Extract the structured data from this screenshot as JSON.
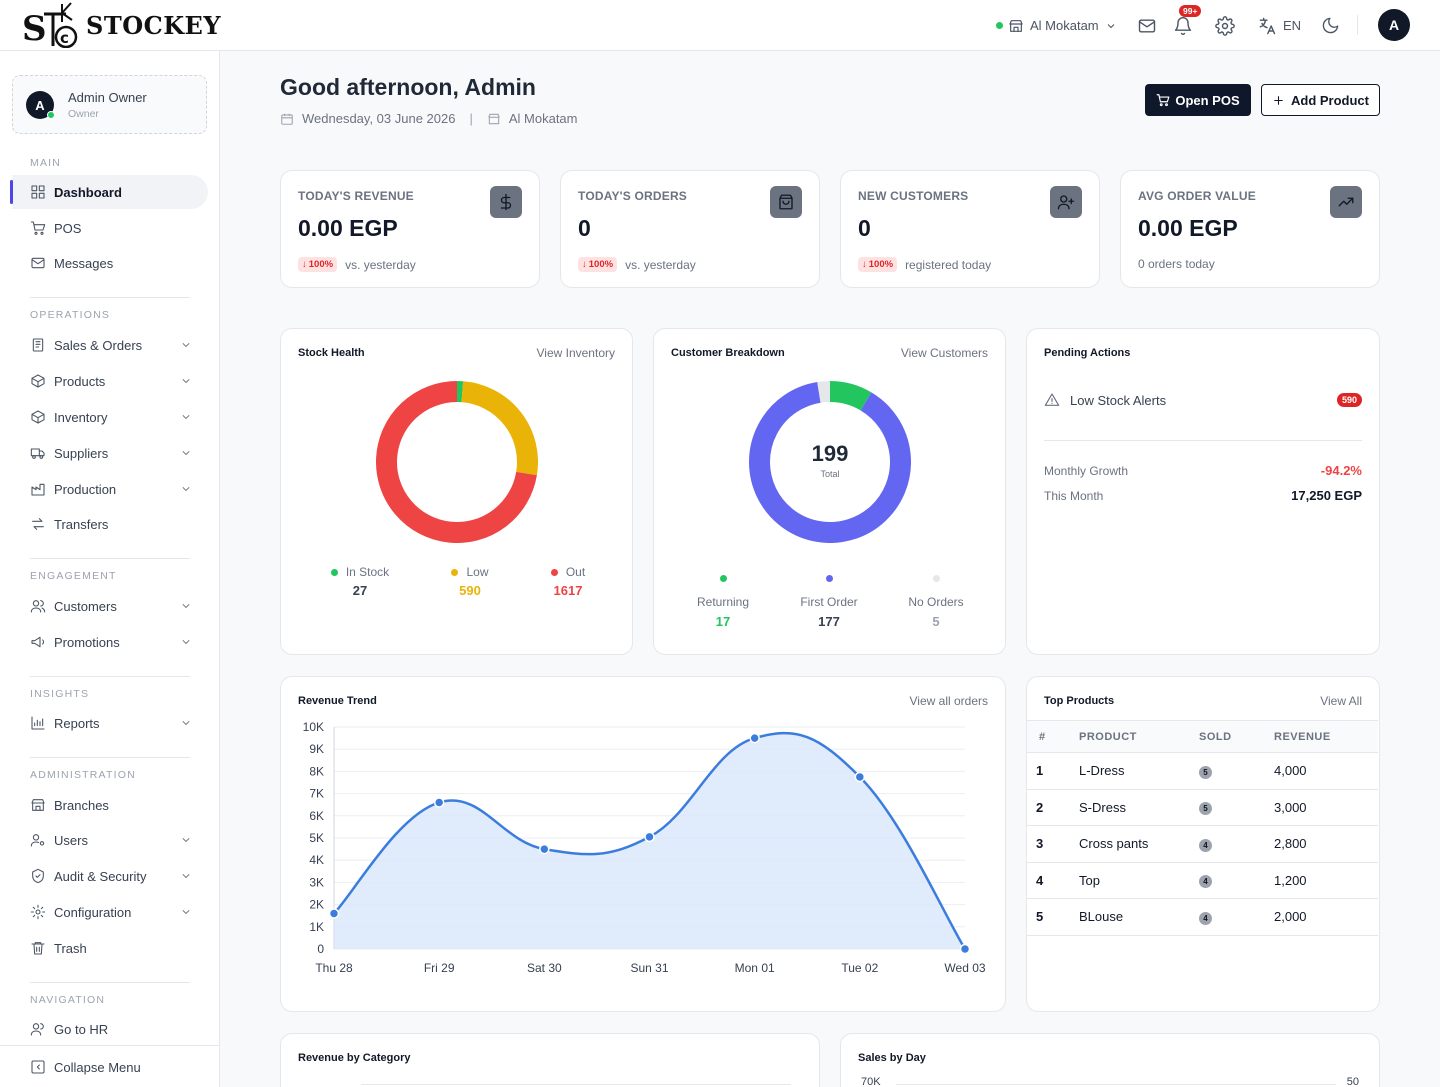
{
  "app": {
    "name": "STOCKEY"
  },
  "topbar": {
    "branch": "Al Mokatam",
    "notifications_badge": "99+",
    "language": "EN",
    "user_initial": "A"
  },
  "profile": {
    "initial": "A",
    "name": "Admin Owner",
    "role": "Owner"
  },
  "sidebar": {
    "sections": {
      "main": "MAIN",
      "operations": "OPERATIONS",
      "engagement": "ENGAGEMENT",
      "insights": "INSIGHTS",
      "administration": "ADMINISTRATION",
      "navigation": "NAVIGATION"
    },
    "items": {
      "dashboard": "Dashboard",
      "pos": "POS",
      "messages": "Messages",
      "sales_orders": "Sales & Orders",
      "products": "Products",
      "inventory": "Inventory",
      "suppliers": "Suppliers",
      "production": "Production",
      "transfers": "Transfers",
      "customers": "Customers",
      "promotions": "Promotions",
      "reports": "Reports",
      "branches": "Branches",
      "users": "Users",
      "audit": "Audit & Security",
      "configuration": "Configuration",
      "trash": "Trash",
      "go_to_hr": "Go to HR",
      "collapse": "Collapse Menu"
    }
  },
  "header": {
    "greeting": "Good afternoon, Admin",
    "date": "Wednesday, 03 June 2026",
    "separator": "|",
    "branch": "Al Mokatam",
    "open_pos": "Open POS",
    "add_product": "Add Product"
  },
  "stats": [
    {
      "label": "TODAY'S REVENUE",
      "value": "0.00 EGP",
      "badge": "100%",
      "sub": "vs. yesterday",
      "icon": "dollar-icon"
    },
    {
      "label": "TODAY'S ORDERS",
      "value": "0",
      "badge": "100%",
      "sub": "vs. yesterday",
      "icon": "shopping-bag-icon"
    },
    {
      "label": "NEW CUSTOMERS",
      "value": "0",
      "badge": "100%",
      "sub": "registered today",
      "icon": "user-plus-icon"
    },
    {
      "label": "AVG ORDER VALUE",
      "value": "0.00 EGP",
      "badge": "",
      "sub": "0 orders today",
      "icon": "trending-up-icon"
    }
  ],
  "stock_health": {
    "title": "Stock Health",
    "link": "View Inventory",
    "legend": [
      {
        "label": "In Stock",
        "value": "27",
        "color": "#22c55e"
      },
      {
        "label": "Low",
        "value": "590",
        "color": "#eab308"
      },
      {
        "label": "Out",
        "value": "1617",
        "color": "#ef4444"
      }
    ]
  },
  "customer_breakdown": {
    "title": "Customer Breakdown",
    "link": "View Customers",
    "total": "199",
    "total_label": "Total",
    "legend": [
      {
        "label": "Returning",
        "value": "17",
        "color": "#22c55e"
      },
      {
        "label": "First Order",
        "value": "177",
        "color": "#6366f1"
      },
      {
        "label": "No Orders",
        "value": "5",
        "color": "#e5e7eb"
      }
    ]
  },
  "pending": {
    "title": "Pending Actions",
    "low_stock_label": "Low Stock Alerts",
    "low_stock_count": "590",
    "growth_label": "Monthly Growth",
    "growth_value": "-94.2%",
    "month_label": "This Month",
    "month_value": "17,250 EGP"
  },
  "revenue_trend": {
    "title": "Revenue Trend",
    "link": "View all orders"
  },
  "top_products": {
    "title": "Top Products",
    "link": "View All",
    "headers": [
      "#",
      "PRODUCT",
      "SOLD",
      "REVENUE"
    ],
    "rows": [
      {
        "rank": "1",
        "product": "L-Dress",
        "sold": "5",
        "revenue": "4,000"
      },
      {
        "rank": "2",
        "product": "S-Dress",
        "sold": "5",
        "revenue": "3,000"
      },
      {
        "rank": "3",
        "product": "Cross pants",
        "sold": "4",
        "revenue": "2,800"
      },
      {
        "rank": "4",
        "product": "Top",
        "sold": "4",
        "revenue": "1,200"
      },
      {
        "rank": "5",
        "product": "BLouse",
        "sold": "4",
        "revenue": "2,000"
      }
    ]
  },
  "bottom": {
    "revenue_by_category": "Revenue by Category",
    "sales_by_day": "Sales by Day",
    "sales_by_day_left_tick": "70K",
    "sales_by_day_right_tick": "50"
  },
  "chart_data": [
    {
      "type": "pie",
      "labels": [
        "In Stock",
        "Low",
        "Out"
      ],
      "values": [
        27,
        590,
        1617
      ],
      "colors": [
        "#22c55e",
        "#eab308",
        "#ef4444"
      ]
    },
    {
      "type": "pie",
      "labels": [
        "Returning",
        "First Order",
        "No Orders"
      ],
      "values": [
        17,
        177,
        5
      ],
      "colors": [
        "#22c55e",
        "#6366f1",
        "#e5e7eb"
      ]
    },
    {
      "type": "area",
      "categories": [
        "Thu 28",
        "Fri 29",
        "Sat 30",
        "Sun 31",
        "Mon 01",
        "Tue 02",
        "Wed 03"
      ],
      "values": [
        1600,
        6600,
        4500,
        5050,
        9500,
        7750,
        0
      ],
      "ylim": [
        0,
        10000
      ],
      "yticks": [
        "0",
        "1K",
        "2K",
        "3K",
        "4K",
        "5K",
        "6K",
        "7K",
        "8K",
        "9K",
        "10K"
      ],
      "color": "#3b7ddd",
      "grid": true
    }
  ]
}
